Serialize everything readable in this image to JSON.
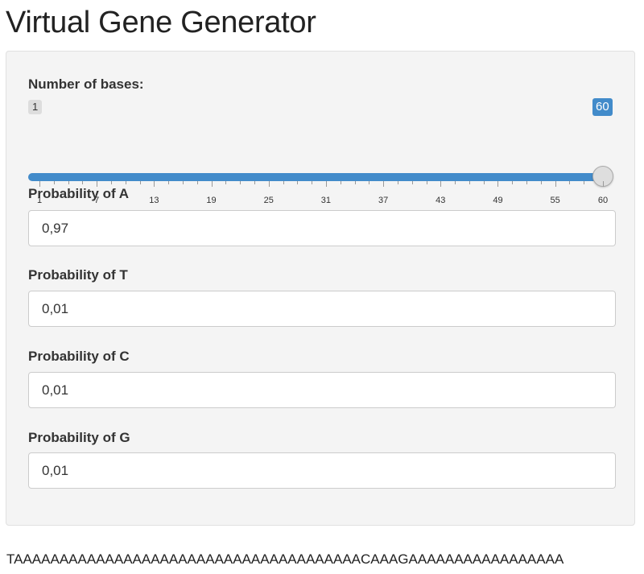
{
  "title": "Virtual Gene Generator",
  "slider": {
    "label": "Number of bases:",
    "min": 1,
    "max": 60,
    "min_label": "1",
    "value": 60,
    "value_label": "60",
    "tick_labels": [
      "1",
      "7",
      "13",
      "19",
      "25",
      "31",
      "37",
      "43",
      "49",
      "55",
      "60"
    ],
    "accent_color": "#428bca"
  },
  "inputs": [
    {
      "label": "Probability of A",
      "value": "0,97"
    },
    {
      "label": "Probability of T",
      "value": "0,01"
    },
    {
      "label": "Probability of C",
      "value": "0,01"
    },
    {
      "label": "Probability of G",
      "value": "0,01"
    }
  ],
  "output": {
    "sequence": "TAAAAAAAAAAAAAAAAAAAAAAAAAAAAAAAAAAAAAACAAAGAAAAAAAAAAAAAAAAA"
  }
}
